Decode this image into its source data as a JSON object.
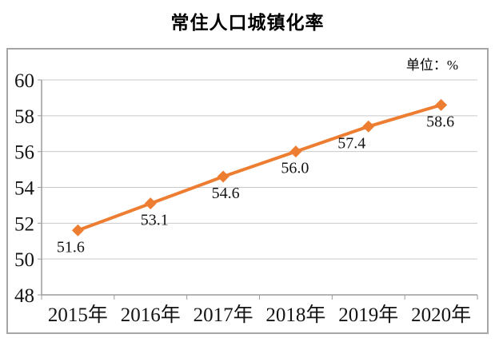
{
  "page": {
    "background": "#ffffff"
  },
  "chart_data": {
    "type": "line",
    "title": "常住人口城镇化率",
    "unit_label": "单位：%",
    "categories": [
      "2015年",
      "2016年",
      "2017年",
      "2018年",
      "2019年",
      "2020年"
    ],
    "series": [
      {
        "name": "常住人口城镇化率",
        "values": [
          51.6,
          53.1,
          54.6,
          56.0,
          57.4,
          58.6
        ],
        "labels": [
          "51.6",
          "53.1",
          "54.6",
          "56.0",
          "57.4",
          "58.6"
        ],
        "color": "#ED7D31",
        "marker": "diamond"
      }
    ],
    "xlabel": "",
    "ylabel": "",
    "ylim": [
      48,
      60
    ],
    "yticks": [
      48,
      50,
      52,
      54,
      56,
      58,
      60
    ],
    "grid": true,
    "legend_position": "none",
    "colors": {
      "line": "#ED7D31",
      "gridline": "#c9c9c9",
      "axis": "#9b9b9b",
      "frame_border": "#a6a6a6",
      "text": "#141414"
    }
  }
}
